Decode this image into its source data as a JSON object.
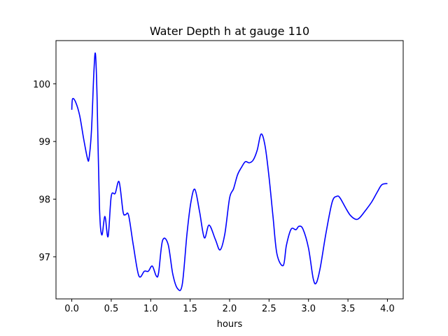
{
  "chart_data": {
    "type": "line",
    "title": "Water Depth h at gauge 110",
    "xlabel": "hours",
    "ylabel": "",
    "xlim": [
      -0.2,
      4.2
    ],
    "ylim": [
      96.27,
      100.75
    ],
    "xticks": [
      0.0,
      0.5,
      1.0,
      1.5,
      2.0,
      2.5,
      3.0,
      3.5,
      4.0
    ],
    "xtick_labels": [
      "0.0",
      "0.5",
      "1.0",
      "1.5",
      "2.0",
      "2.5",
      "3.0",
      "3.5",
      "4.0"
    ],
    "yticks": [
      97,
      98,
      99,
      100
    ],
    "ytick_labels": [
      "97",
      "98",
      "99",
      "100"
    ],
    "grid": false,
    "series": [
      {
        "color": "#0000ff",
        "x": [
          0.0,
          0.01,
          0.05,
          0.1,
          0.15,
          0.2,
          0.22,
          0.25,
          0.28,
          0.3,
          0.32,
          0.35,
          0.38,
          0.42,
          0.46,
          0.5,
          0.55,
          0.6,
          0.65,
          0.68,
          0.72,
          0.78,
          0.85,
          0.92,
          0.97,
          1.02,
          1.07,
          1.1,
          1.15,
          1.22,
          1.28,
          1.34,
          1.4,
          1.46,
          1.51,
          1.56,
          1.62,
          1.68,
          1.74,
          1.82,
          1.88,
          1.94,
          2.0,
          2.05,
          2.1,
          2.15,
          2.2,
          2.25,
          2.3,
          2.35,
          2.4,
          2.45,
          2.5,
          2.55,
          2.6,
          2.68,
          2.72,
          2.78,
          2.84,
          2.88,
          2.93,
          3.0,
          3.06,
          3.1,
          3.15,
          3.22,
          3.3,
          3.36,
          3.4,
          3.47,
          3.53,
          3.6,
          3.65,
          3.72,
          3.8,
          3.87,
          3.93,
          4.0
        ],
        "values": [
          99.55,
          99.74,
          99.68,
          99.45,
          99.05,
          98.7,
          98.72,
          99.2,
          100.2,
          100.52,
          99.8,
          97.9,
          97.38,
          97.7,
          97.35,
          98.05,
          98.1,
          98.3,
          97.78,
          97.73,
          97.72,
          97.2,
          96.67,
          96.75,
          96.75,
          96.84,
          96.67,
          96.72,
          97.28,
          97.22,
          96.7,
          96.45,
          96.52,
          97.4,
          97.95,
          98.17,
          97.78,
          97.33,
          97.55,
          97.3,
          97.12,
          97.4,
          98.02,
          98.18,
          98.42,
          98.55,
          98.65,
          98.63,
          98.68,
          98.85,
          99.13,
          98.92,
          98.38,
          97.7,
          97.05,
          96.85,
          97.2,
          97.48,
          97.47,
          97.53,
          97.48,
          97.15,
          96.62,
          96.55,
          96.82,
          97.4,
          97.95,
          98.05,
          98.02,
          97.85,
          97.72,
          97.65,
          97.68,
          97.8,
          97.95,
          98.12,
          98.25,
          98.27
        ]
      }
    ]
  }
}
